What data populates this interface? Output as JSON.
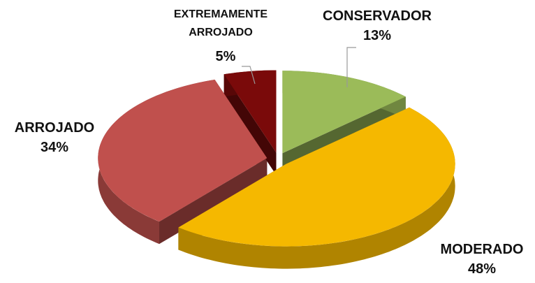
{
  "chart_data": {
    "type": "pie",
    "categories": [
      "CONSERVADOR",
      "MODERADO",
      "ARROJADO",
      "EXTREMAMENTE ARROJADO"
    ],
    "values": [
      13,
      48,
      34,
      5
    ],
    "value_labels": [
      "13%",
      "48%",
      "34%",
      "5%"
    ],
    "colors": [
      "#9bbb59",
      "#f5b800",
      "#c0504d",
      "#7a0a0a"
    ]
  }
}
